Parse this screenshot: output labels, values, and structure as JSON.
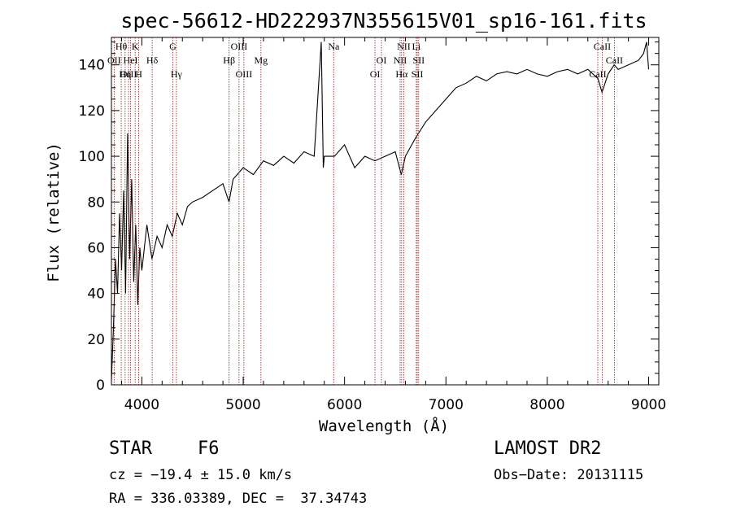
{
  "chart_data": {
    "type": "line",
    "title": "spec-56612-HD222937N355615V01_sp16-161.fits",
    "xlabel": "Wavelength (Å)",
    "ylabel": "Flux (relative)",
    "xlim": [
      3700,
      9100
    ],
    "ylim": [
      0,
      152
    ],
    "xticks": [
      4000,
      5000,
      6000,
      7000,
      8000,
      9000
    ],
    "yticks": [
      0,
      20,
      40,
      60,
      80,
      100,
      120,
      140
    ],
    "grid": false,
    "series": [
      {
        "x": [
          3700,
          3720,
          3740,
          3760,
          3780,
          3800,
          3820,
          3840,
          3860,
          3880,
          3900,
          3920,
          3940,
          3960,
          3980,
          4000,
          4050,
          4100,
          4150,
          4200,
          4250,
          4300,
          4350,
          4400,
          4450,
          4500,
          4600,
          4700,
          4800,
          4860,
          4900,
          5000,
          5100,
          5200,
          5300,
          5400,
          5500,
          5600,
          5700,
          5770,
          5790,
          5800,
          5900,
          6000,
          6100,
          6200,
          6300,
          6400,
          6500,
          6560,
          6600,
          6700,
          6800,
          6900,
          7000,
          7100,
          7200,
          7300,
          7400,
          7500,
          7600,
          7700,
          7800,
          7900,
          8000,
          8100,
          8200,
          8300,
          8400,
          8500,
          8540,
          8600,
          8660,
          8700,
          8800,
          8900,
          8950,
          8980,
          9000
        ],
        "y": [
          2,
          25,
          55,
          40,
          75,
          50,
          85,
          40,
          110,
          55,
          90,
          45,
          70,
          35,
          60,
          50,
          70,
          55,
          65,
          60,
          70,
          65,
          75,
          70,
          78,
          80,
          82,
          85,
          88,
          80,
          90,
          95,
          92,
          98,
          96,
          100,
          97,
          102,
          100,
          150,
          95,
          100,
          100,
          105,
          95,
          100,
          98,
          100,
          102,
          92,
          100,
          108,
          115,
          120,
          125,
          130,
          132,
          135,
          133,
          136,
          137,
          136,
          138,
          136,
          135,
          137,
          138,
          136,
          138,
          134,
          128,
          136,
          140,
          138,
          140,
          142,
          145,
          150,
          138
        ]
      }
    ],
    "line_ids": [
      {
        "label": "Hθ",
        "x": 3797,
        "row": 1
      },
      {
        "label": "K",
        "x": 3934,
        "row": 1
      },
      {
        "label": "G",
        "x": 4305,
        "row": 1
      },
      {
        "label": "OIII",
        "x": 4959,
        "row": 1
      },
      {
        "label": "Na",
        "x": 5893,
        "row": 1
      },
      {
        "label": "NII",
        "x": 6584,
        "row": 1
      },
      {
        "label": "Li",
        "x": 6708,
        "row": 1
      },
      {
        "label": "CaII",
        "x": 8542,
        "row": 1
      },
      {
        "label": "OII",
        "x": 3727,
        "row": 2
      },
      {
        "label": "HeI",
        "x": 3889,
        "row": 2
      },
      {
        "label": "Hδ",
        "x": 4102,
        "row": 2
      },
      {
        "label": "Hβ",
        "x": 4861,
        "row": 2
      },
      {
        "label": "Mg",
        "x": 5175,
        "row": 2
      },
      {
        "label": "OI",
        "x": 6364,
        "row": 2
      },
      {
        "label": "NII",
        "x": 6548,
        "row": 2
      },
      {
        "label": "SII",
        "x": 6731,
        "row": 2
      },
      {
        "label": "CaII",
        "x": 8662,
        "row": 2
      },
      {
        "label": "OIII",
        "x": 3869,
        "row": 3
      },
      {
        "label": "Hη",
        "x": 3835,
        "row": 3
      },
      {
        "label": "H",
        "x": 3969,
        "row": 3
      },
      {
        "label": "Hγ",
        "x": 4341,
        "row": 3
      },
      {
        "label": "OIII",
        "x": 5007,
        "row": 3
      },
      {
        "label": "OI",
        "x": 6300,
        "row": 3
      },
      {
        "label": "Hα",
        "x": 6563,
        "row": 3
      },
      {
        "label": "SII",
        "x": 6717,
        "row": 3
      },
      {
        "label": "CaII",
        "x": 8498,
        "row": 3
      }
    ],
    "colors": {
      "spectrum": "#000000",
      "line_markers": "#8b1a1a"
    }
  },
  "info": {
    "class": "STAR",
    "subclass": "F6",
    "survey": "LAMOST DR2",
    "cz": "cz = −19.4 ± 15.0 km/s",
    "obs_date": "Obs−Date: 20131115",
    "radec": "RA = 336.03389, DEC =  37.34743"
  }
}
